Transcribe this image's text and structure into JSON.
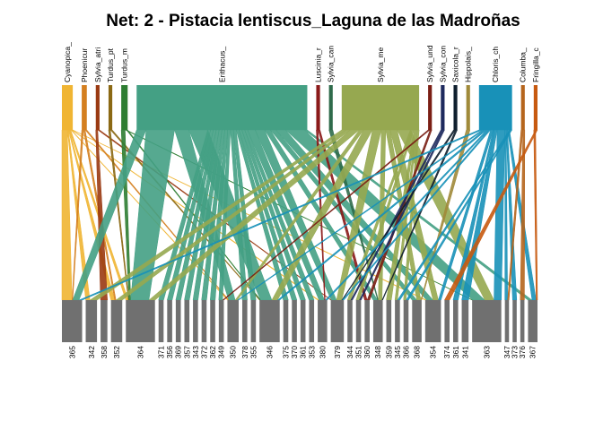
{
  "chart_data": {
    "type": "bipartite",
    "title": "Net: 2 - Pistacia lentiscus_Laguna de las Madroñas",
    "higher": [
      {
        "label": "Cyanopica_",
        "color": "#F0B533",
        "weight": 1.0
      },
      {
        "label": "Phoenicur",
        "color": "#D47F20",
        "weight": 0.35
      },
      {
        "label": "Sylvia_atri",
        "color": "#9A3A12",
        "weight": 0.2
      },
      {
        "label": "Turdus_pt",
        "color": "#8B6914",
        "weight": 0.2
      },
      {
        "label": "Turdus_m",
        "color": "#2E7D32",
        "weight": 0.5
      },
      {
        "label": "Erithacus_",
        "color": "#44A084",
        "weight": 19.0
      },
      {
        "label": "Luscinia_r",
        "color": "#8B1A1A",
        "weight": 0.2
      },
      {
        "label": "Sylvia_can",
        "color": "#2F6B4B",
        "weight": 0.2
      },
      {
        "label": "Sylvia_me",
        "color": "#96A850",
        "weight": 8.5
      },
      {
        "label": "Sylvia_und",
        "color": "#7A1E14",
        "weight": 0.2
      },
      {
        "label": "Sylvia_con",
        "color": "#1E2A5E",
        "weight": 0.2
      },
      {
        "label": "Saxicola_r",
        "color": "#0F1F2E",
        "weight": 0.2
      },
      {
        "label": "Hippolais_",
        "color": "#A08A3A",
        "weight": 0.2
      },
      {
        "label": "Chloris_ch",
        "color": "#1891B8",
        "weight": 3.5
      },
      {
        "label": "Columba_",
        "color": "#B5651D",
        "weight": 0.2
      },
      {
        "label": "Fringilla_c",
        "color": "#C75A10",
        "weight": 0.2
      }
    ],
    "lower": [
      {
        "label": "365",
        "weight": 2.0
      },
      {
        "label": "342",
        "weight": 1.0
      },
      {
        "label": "358",
        "weight": 0.5
      },
      {
        "label": "352",
        "weight": 1.0
      },
      {
        "label": "364",
        "weight": 3.0
      },
      {
        "label": "371",
        "weight": 0.3
      },
      {
        "label": "356",
        "weight": 0.3
      },
      {
        "label": "369",
        "weight": 0.3
      },
      {
        "label": "357",
        "weight": 0.3
      },
      {
        "label": "343",
        "weight": 0.3
      },
      {
        "label": "372",
        "weight": 0.3
      },
      {
        "label": "362",
        "weight": 0.3
      },
      {
        "label": "349",
        "weight": 0.3
      },
      {
        "label": "350",
        "weight": 1.0
      },
      {
        "label": "378",
        "weight": 0.3
      },
      {
        "label": "355",
        "weight": 0.3
      },
      {
        "label": "346",
        "weight": 2.0
      },
      {
        "label": "375",
        "weight": 0.3
      },
      {
        "label": "370",
        "weight": 0.3
      },
      {
        "label": "361",
        "weight": 0.3
      },
      {
        "label": "353",
        "weight": 0.3
      },
      {
        "label": "380",
        "weight": 0.8
      },
      {
        "label": "379",
        "weight": 1.2
      },
      {
        "label": "344",
        "weight": 0.3
      },
      {
        "label": "351",
        "weight": 0.3
      },
      {
        "label": "360",
        "weight": 0.3
      },
      {
        "label": "348",
        "weight": 0.8
      },
      {
        "label": "359",
        "weight": 0.3
      },
      {
        "label": "345",
        "weight": 0.3
      },
      {
        "label": "366",
        "weight": 0.3
      },
      {
        "label": "368",
        "weight": 0.8
      },
      {
        "label": "354",
        "weight": 1.5
      },
      {
        "label": "374",
        "weight": 0.3
      },
      {
        "label": "361",
        "weight": 0.3
      },
      {
        "label": "341",
        "weight": 0.5
      },
      {
        "label": "363",
        "weight": 3.0
      },
      {
        "label": "347",
        "weight": 0.2
      },
      {
        "label": "373",
        "weight": 0.2
      },
      {
        "label": "376",
        "weight": 0.2
      },
      {
        "label": "367",
        "weight": 0.8
      }
    ],
    "links": [
      [
        0,
        0,
        1.6
      ],
      [
        0,
        1,
        0.3
      ],
      [
        0,
        3,
        0.3
      ],
      [
        0,
        4,
        0.4
      ],
      [
        0,
        13,
        0.2
      ],
      [
        0,
        21,
        0.2
      ],
      [
        0,
        31,
        0.2
      ],
      [
        1,
        0,
        0.1
      ],
      [
        1,
        3,
        0.1
      ],
      [
        1,
        13,
        0.1
      ],
      [
        2,
        2,
        0.1
      ],
      [
        2,
        22,
        0.1
      ],
      [
        3,
        4,
        0.1
      ],
      [
        3,
        16,
        0.1
      ],
      [
        4,
        4,
        0.3
      ],
      [
        4,
        35,
        0.1
      ],
      [
        4,
        16,
        0.1
      ],
      [
        5,
        0,
        1.0
      ],
      [
        5,
        4,
        3.0
      ],
      [
        5,
        13,
        1.5
      ],
      [
        5,
        16,
        2.0
      ],
      [
        5,
        5,
        0.3
      ],
      [
        5,
        6,
        0.3
      ],
      [
        5,
        7,
        0.3
      ],
      [
        5,
        8,
        0.3
      ],
      [
        5,
        9,
        0.3
      ],
      [
        5,
        10,
        0.3
      ],
      [
        5,
        11,
        0.3
      ],
      [
        5,
        12,
        0.3
      ],
      [
        5,
        14,
        0.3
      ],
      [
        5,
        15,
        0.3
      ],
      [
        5,
        17,
        0.3
      ],
      [
        5,
        18,
        0.3
      ],
      [
        5,
        19,
        0.3
      ],
      [
        5,
        20,
        0.3
      ],
      [
        5,
        21,
        0.8
      ],
      [
        5,
        22,
        1.0
      ],
      [
        5,
        26,
        0.6
      ],
      [
        5,
        30,
        0.6
      ],
      [
        5,
        31,
        1.0
      ],
      [
        5,
        35,
        2.0
      ],
      [
        5,
        39,
        0.3
      ],
      [
        6,
        21,
        0.1
      ],
      [
        6,
        25,
        0.1
      ],
      [
        7,
        26,
        0.1
      ],
      [
        8,
        1,
        0.5
      ],
      [
        8,
        3,
        0.5
      ],
      [
        8,
        4,
        1.0
      ],
      [
        8,
        13,
        0.5
      ],
      [
        8,
        16,
        1.0
      ],
      [
        8,
        22,
        1.0
      ],
      [
        8,
        26,
        0.5
      ],
      [
        8,
        30,
        0.5
      ],
      [
        8,
        31,
        0.8
      ],
      [
        8,
        35,
        1.5
      ],
      [
        8,
        23,
        0.2
      ],
      [
        8,
        24,
        0.2
      ],
      [
        8,
        27,
        0.2
      ],
      [
        8,
        28,
        0.2
      ],
      [
        8,
        29,
        0.2
      ],
      [
        9,
        12,
        0.1
      ],
      [
        9,
        25,
        0.1
      ],
      [
        10,
        23,
        0.1
      ],
      [
        10,
        24,
        0.1
      ],
      [
        11,
        22,
        0.1
      ],
      [
        11,
        26,
        0.1
      ],
      [
        12,
        30,
        0.1
      ],
      [
        13,
        0,
        0.5
      ],
      [
        13,
        13,
        0.3
      ],
      [
        13,
        16,
        0.4
      ],
      [
        13,
        21,
        0.3
      ],
      [
        13,
        22,
        0.3
      ],
      [
        13,
        31,
        0.4
      ],
      [
        13,
        33,
        0.2
      ],
      [
        13,
        34,
        0.4
      ],
      [
        13,
        35,
        1.2
      ],
      [
        13,
        36,
        0.2
      ],
      [
        13,
        37,
        0.2
      ],
      [
        13,
        39,
        0.3
      ],
      [
        13,
        28,
        0.2
      ],
      [
        13,
        29,
        0.2
      ],
      [
        14,
        36,
        0.1
      ],
      [
        14,
        38,
        0.1
      ],
      [
        15,
        39,
        0.1
      ],
      [
        15,
        32,
        0.1
      ]
    ]
  }
}
